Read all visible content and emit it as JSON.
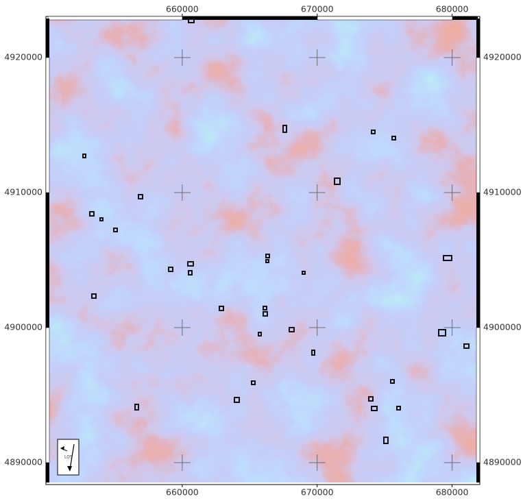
{
  "map": {
    "xticks": [
      660000,
      670000,
      680000
    ],
    "yticks": [
      4920000,
      4910000,
      4900000,
      4890000
    ],
    "xlim": [
      650050,
      681900
    ],
    "ylim": [
      4888528,
      4922893
    ],
    "los_label": "LOS"
  }
}
